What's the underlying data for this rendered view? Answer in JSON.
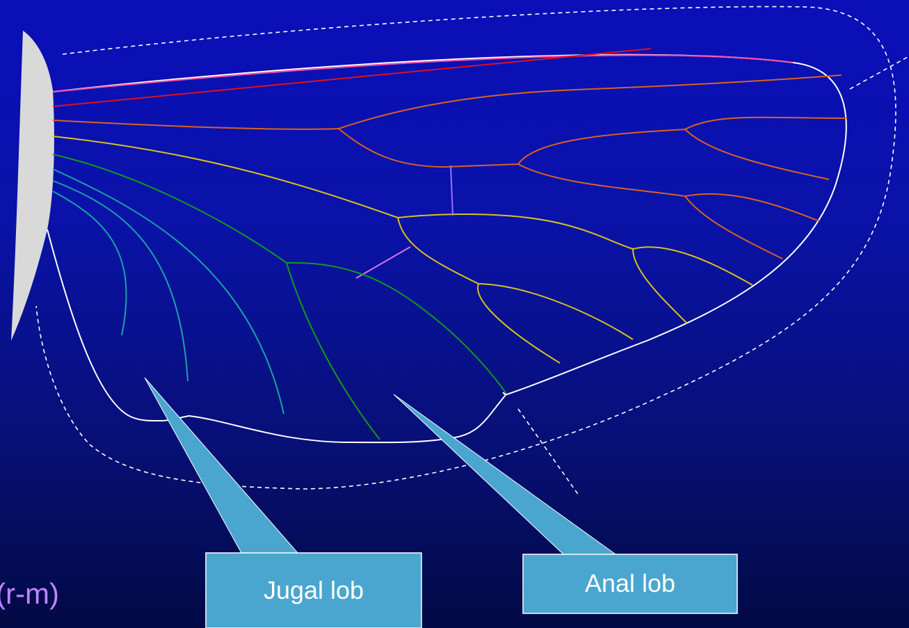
{
  "callouts": {
    "jugal": "Jugal lob",
    "anal": "Anal lob"
  },
  "partial_label": "(r-m)",
  "colors": {
    "costa": "#ff4fa3",
    "subcosta": "#e0101e",
    "radius": "#d9621f",
    "media": "#d8c21a",
    "cubitus": "#119a1a",
    "anal": "#1aa3a3",
    "crossvein_rm": "#9a70ff",
    "crossvein_mcu": "#e070f0",
    "outline": "#ffffff",
    "callout": "#4aa6cf",
    "wing_base": "#d9d9d9"
  }
}
